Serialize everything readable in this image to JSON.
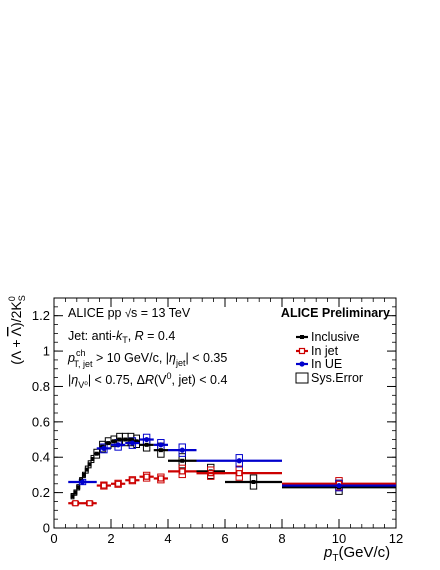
{
  "chart_data": {
    "type": "scatter",
    "xlabel": "p_T (GeV/c)",
    "ylabel": "(Λ + Λ̄)/2K⁰_S",
    "xlim": [
      0,
      12
    ],
    "ylim": [
      0,
      1.3
    ],
    "x_ticks": [
      "0",
      "2",
      "4",
      "6",
      "8",
      "10",
      "12"
    ],
    "y_ticks": [
      "0",
      "0.2",
      "0.4",
      "0.6",
      "0.8",
      "1",
      "1.2"
    ],
    "grid": false,
    "legend_position": "top-right",
    "annotations": {
      "system": "ALICE pp √s = 13 TeV",
      "preliminary": "ALICE Preliminary",
      "jet_def": "Jet: anti-kT, R = 0.4",
      "pt_cut": "pT,jet ch > 10 GeV/c, |ηjet| < 0.35",
      "eta_cut": "|ηV0| < 0.75, ΔR(V0, jet) < 0.4"
    },
    "legend": {
      "inclusive": "Inclusive",
      "in_jet": "In jet",
      "in_ue": "In UE",
      "sys_error": "Sys.Error"
    },
    "series": [
      {
        "name": "Inclusive",
        "color": "#000000",
        "points": [
          {
            "x": 0.65,
            "y": 0.18,
            "xerr": 0.05,
            "sys": 0.015
          },
          {
            "x": 0.75,
            "y": 0.2,
            "xerr": 0.05,
            "sys": 0.015
          },
          {
            "x": 0.85,
            "y": 0.23,
            "xerr": 0.05,
            "sys": 0.015
          },
          {
            "x": 0.95,
            "y": 0.27,
            "xerr": 0.05,
            "sys": 0.015
          },
          {
            "x": 1.05,
            "y": 0.3,
            "xerr": 0.05,
            "sys": 0.015
          },
          {
            "x": 1.15,
            "y": 0.33,
            "xerr": 0.05,
            "sys": 0.02
          },
          {
            "x": 1.25,
            "y": 0.36,
            "xerr": 0.05,
            "sys": 0.02
          },
          {
            "x": 1.35,
            "y": 0.39,
            "xerr": 0.05,
            "sys": 0.02
          },
          {
            "x": 1.5,
            "y": 0.42,
            "xerr": 0.1,
            "sys": 0.025
          },
          {
            "x": 1.7,
            "y": 0.46,
            "xerr": 0.1,
            "sys": 0.03
          },
          {
            "x": 1.9,
            "y": 0.48,
            "xerr": 0.1,
            "sys": 0.03
          },
          {
            "x": 2.1,
            "y": 0.49,
            "xerr": 0.1,
            "sys": 0.03
          },
          {
            "x": 2.3,
            "y": 0.5,
            "xerr": 0.1,
            "sys": 0.035
          },
          {
            "x": 2.5,
            "y": 0.5,
            "xerr": 0.1,
            "sys": 0.035
          },
          {
            "x": 2.7,
            "y": 0.5,
            "xerr": 0.1,
            "sys": 0.035
          },
          {
            "x": 2.9,
            "y": 0.49,
            "xerr": 0.1,
            "sys": 0.035
          },
          {
            "x": 3.25,
            "y": 0.47,
            "xerr": 0.25,
            "sys": 0.035
          },
          {
            "x": 3.75,
            "y": 0.44,
            "xerr": 0.25,
            "sys": 0.04
          },
          {
            "x": 4.5,
            "y": 0.38,
            "xerr": 0.5,
            "sys": 0.04
          },
          {
            "x": 5.5,
            "y": 0.32,
            "xerr": 0.5,
            "sys": 0.04
          },
          {
            "x": 7.0,
            "y": 0.26,
            "xerr": 1.0,
            "sys": 0.04
          },
          {
            "x": 10.0,
            "y": 0.23,
            "xerr": 2.0,
            "sys": 0.04
          }
        ]
      },
      {
        "name": "In jet",
        "color": "#cc0000",
        "points": [
          {
            "x": 0.75,
            "y": 0.14,
            "xerr": 0.25,
            "sys": 0.01
          },
          {
            "x": 1.25,
            "y": 0.14,
            "xerr": 0.25,
            "sys": 0.012
          },
          {
            "x": 1.75,
            "y": 0.24,
            "xerr": 0.25,
            "sys": 0.02
          },
          {
            "x": 2.25,
            "y": 0.25,
            "xerr": 0.25,
            "sys": 0.02
          },
          {
            "x": 2.75,
            "y": 0.27,
            "xerr": 0.25,
            "sys": 0.02
          },
          {
            "x": 3.25,
            "y": 0.29,
            "xerr": 0.25,
            "sys": 0.025
          },
          {
            "x": 3.75,
            "y": 0.28,
            "xerr": 0.25,
            "sys": 0.025
          },
          {
            "x": 4.5,
            "y": 0.32,
            "xerr": 0.5,
            "sys": 0.035
          },
          {
            "x": 5.5,
            "y": 0.31,
            "xerr": 0.5,
            "sys": 0.035
          },
          {
            "x": 6.5,
            "y": 0.31,
            "xerr": 1.5,
            "sys": 0.04
          },
          {
            "x": 10.0,
            "y": 0.25,
            "xerr": 2.0,
            "sys": 0.035
          }
        ]
      },
      {
        "name": "In UE",
        "color": "#0000cc",
        "points": [
          {
            "x": 1.0,
            "y": 0.26,
            "xerr": 0.5,
            "sys": 0.015
          },
          {
            "x": 1.75,
            "y": 0.45,
            "xerr": 0.25,
            "sys": 0.025
          },
          {
            "x": 2.25,
            "y": 0.47,
            "xerr": 0.25,
            "sys": 0.03
          },
          {
            "x": 2.75,
            "y": 0.48,
            "xerr": 0.25,
            "sys": 0.03
          },
          {
            "x": 3.25,
            "y": 0.5,
            "xerr": 0.25,
            "sys": 0.03
          },
          {
            "x": 3.75,
            "y": 0.47,
            "xerr": 0.25,
            "sys": 0.03
          },
          {
            "x": 4.5,
            "y": 0.44,
            "xerr": 0.5,
            "sys": 0.035
          },
          {
            "x": 6.5,
            "y": 0.38,
            "xerr": 1.5,
            "sys": 0.035
          },
          {
            "x": 10.0,
            "y": 0.24,
            "xerr": 2.0,
            "sys": 0.03
          }
        ]
      }
    ]
  }
}
